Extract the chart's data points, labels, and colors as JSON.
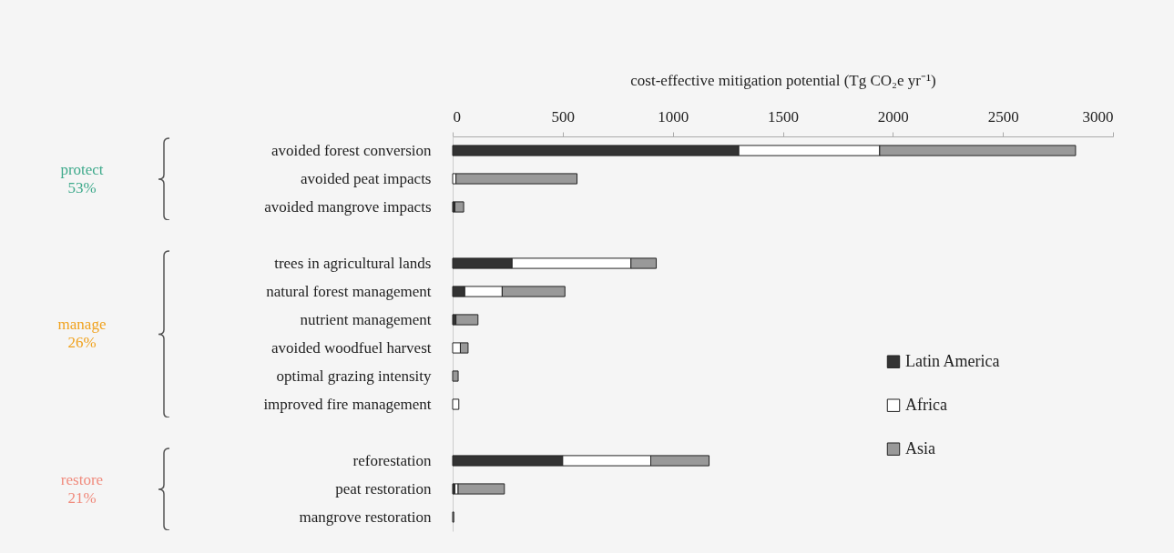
{
  "chart_data": {
    "type": "bar",
    "orientation": "horizontal",
    "stacked": true,
    "xlabel": "cost-effective mitigation potential (Tg CO₂e yr⁻¹)",
    "categories": [
      "avoided forest conversion",
      "avoided peat impacts",
      "avoided mangrove impacts",
      null,
      "trees in agricultural lands",
      "natural forest management",
      "nutrient management",
      "avoided woodfuel harvest",
      "optimal grazing intensity",
      "improved fire management",
      null,
      "reforestation",
      "peat restoration",
      "mangrove restoration"
    ],
    "series": [
      {
        "name": "Latin America",
        "color": "#333333",
        "values": [
          1300,
          null,
          10,
          null,
          270,
          55,
          15,
          null,
          null,
          null,
          null,
          500,
          10,
          null
        ]
      },
      {
        "name": "Africa",
        "color": "#ffffff",
        "values": [
          640,
          15,
          null,
          null,
          540,
          170,
          null,
          35,
          null,
          28,
          null,
          400,
          15,
          null
        ]
      },
      {
        "name": "Asia",
        "color": "#999999",
        "values": [
          890,
          550,
          40,
          null,
          115,
          285,
          100,
          35,
          25,
          null,
          null,
          265,
          210,
          5
        ]
      }
    ],
    "xlim": [
      0,
      3000
    ],
    "xticks": [
      0,
      500,
      1000,
      1500,
      2000,
      2500,
      3000
    ],
    "legend": "right",
    "annotations": [
      "protect 53%",
      "manage 26%",
      "restore 21%"
    ]
  }
}
